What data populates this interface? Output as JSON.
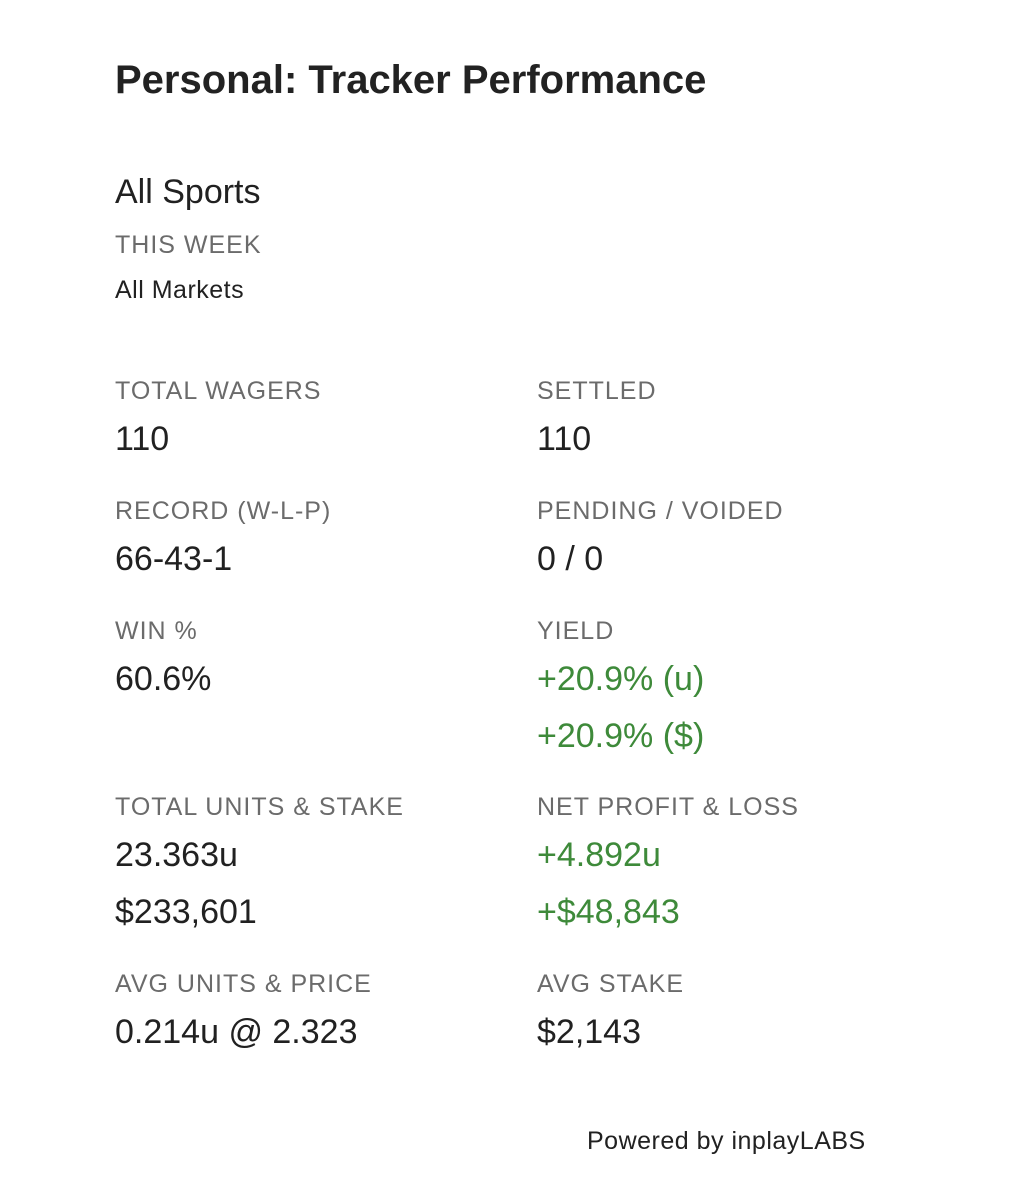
{
  "header": {
    "title": "Personal: Tracker Performance"
  },
  "filters": {
    "sport": "All Sports",
    "period": "THIS WEEK",
    "market": "All Markets"
  },
  "stats": {
    "left": [
      {
        "label": "TOTAL WAGERS",
        "values": [
          "110"
        ]
      },
      {
        "label": "RECORD (W-L-P)",
        "values": [
          "66-43-1"
        ]
      },
      {
        "label": "WIN %",
        "values": [
          "60.6%"
        ]
      },
      {
        "label": "TOTAL UNITS & STAKE",
        "values": [
          "23.363u",
          "$233,601"
        ]
      },
      {
        "label": "AVG UNITS & PRICE",
        "values": [
          "0.214u @ 2.323"
        ]
      }
    ],
    "right": [
      {
        "label": "SETTLED",
        "values": [
          "110"
        ]
      },
      {
        "label": "PENDING / VOIDED",
        "values": [
          "0 / 0"
        ]
      },
      {
        "label": "YIELD",
        "values": [
          "+20.9% (u)",
          "+20.9% ($)"
        ]
      },
      {
        "label": "NET PROFIT & LOSS",
        "values": [
          "+4.892u",
          "+$48,843"
        ]
      },
      {
        "label": "AVG STAKE",
        "values": [
          "$2,143"
        ]
      }
    ]
  },
  "footer": {
    "credit": "Powered by inplayLABS"
  }
}
